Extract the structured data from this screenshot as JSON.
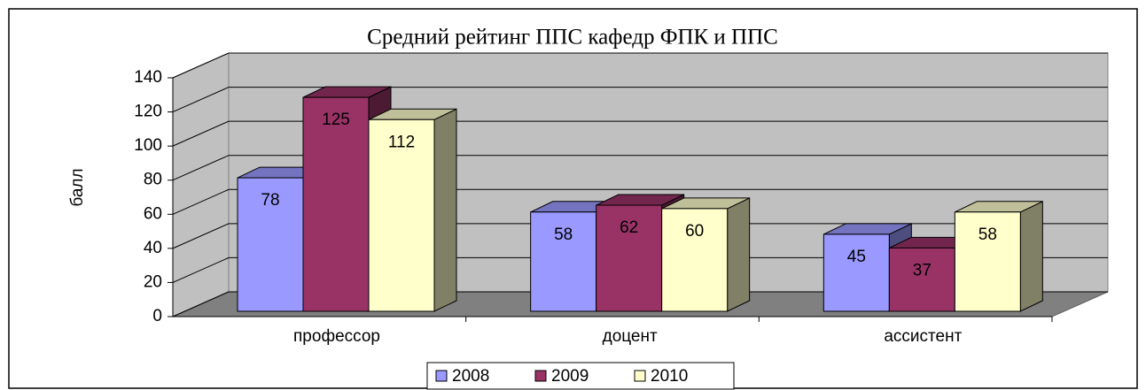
{
  "chart_data": {
    "type": "bar3d",
    "title": "Средний рейтинг ППС кафедр ФПК и ППС",
    "y_label": "балл",
    "categories": [
      "профессор",
      "доцент",
      "ассистент"
    ],
    "series": [
      {
        "name": "2008",
        "color": "#9999ff",
        "values": [
          78,
          58,
          45
        ]
      },
      {
        "name": "2009",
        "color": "#993366",
        "values": [
          125,
          62,
          37
        ]
      },
      {
        "name": "2010",
        "color": "#ffffcc",
        "values": [
          112,
          60,
          58
        ]
      }
    ],
    "ylim": [
      0,
      140
    ],
    "yticks": [
      0,
      20,
      40,
      60,
      80,
      100,
      120,
      140
    ],
    "grid": true,
    "legend": "bottom"
  }
}
